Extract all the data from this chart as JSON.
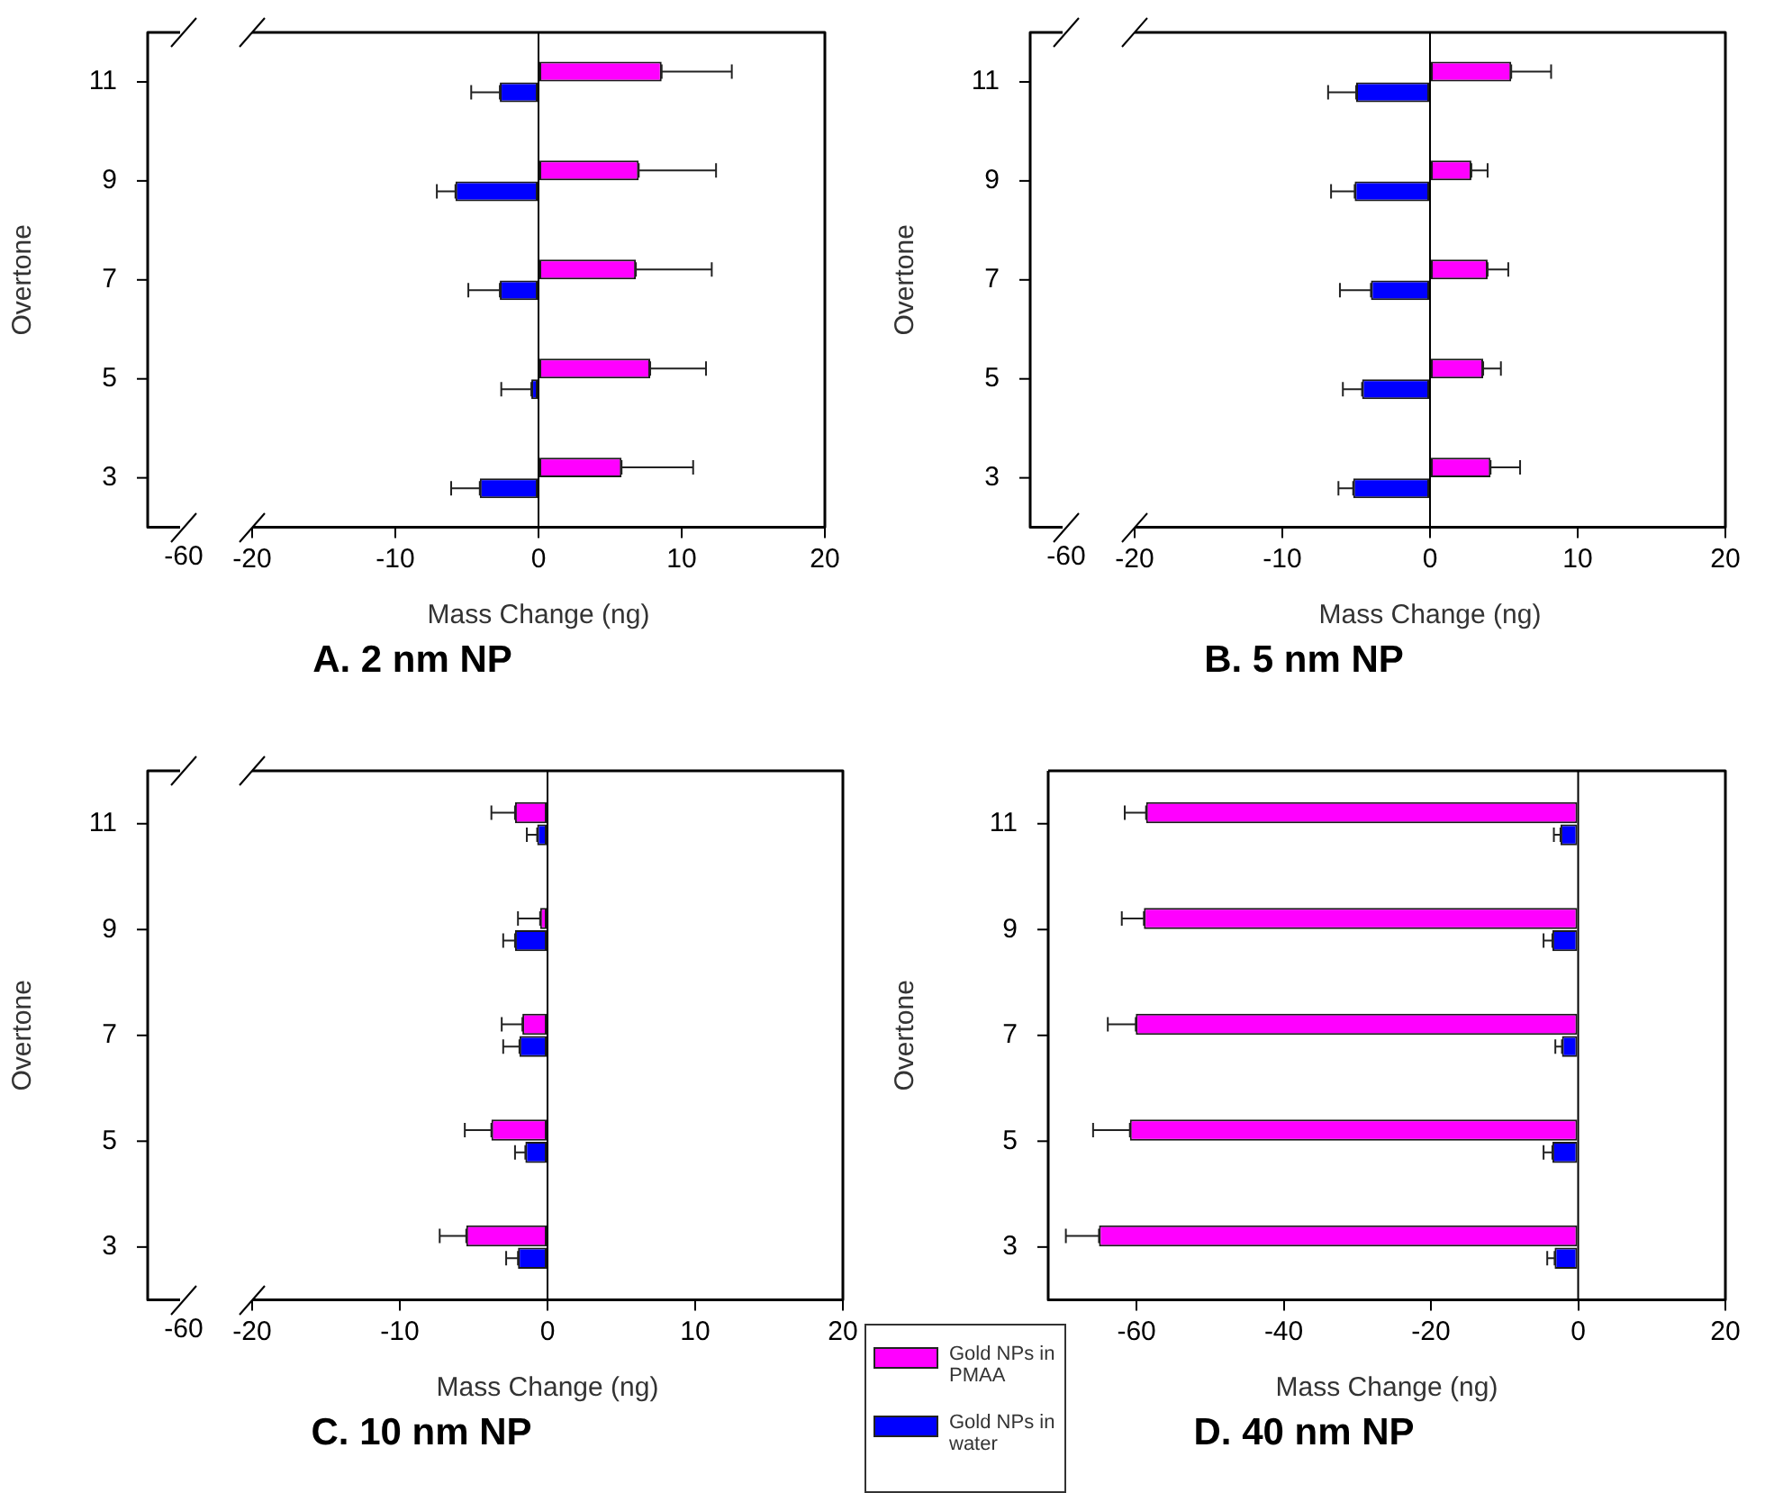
{
  "chart_data": [
    {
      "type": "bar",
      "orientation": "horizontal",
      "title": "A. 2 nm NP",
      "xlabel": "Mass Change (ng)",
      "ylabel": "Overtone",
      "categories": [
        "11",
        "9",
        "7",
        "5",
        "3"
      ],
      "series": [
        {
          "color": "#ff00ff",
          "values": [
            8.6,
            7.0,
            6.8,
            7.8,
            5.8
          ],
          "errors": [
            [
              8.6,
              13.5
            ],
            [
              7.0,
              12.4
            ],
            [
              6.8,
              12.1
            ],
            [
              7.8,
              11.7
            ],
            [
              5.8,
              10.8
            ]
          ]
        },
        {
          "color": "#0000ff",
          "values": [
            -2.7,
            -5.8,
            -2.7,
            -0.5,
            -4.1
          ],
          "errors": [
            [
              -4.7,
              -2.7
            ],
            [
              -7.1,
              -5.8
            ],
            [
              -4.9,
              -2.7
            ],
            [
              -2.6,
              -0.5
            ],
            [
              -6.1,
              -4.1
            ]
          ]
        }
      ],
      "xlim": [
        -20,
        20
      ],
      "xticks": [
        -20,
        -10,
        0,
        10,
        20
      ],
      "annotations": [
        "-60"
      ]
    },
    {
      "type": "bar",
      "orientation": "horizontal",
      "title": "B. 5 nm NP",
      "xlabel": "Mass Change (ng)",
      "ylabel": "Overtone",
      "categories": [
        "11",
        "9",
        "7",
        "5",
        "3"
      ],
      "series": [
        {
          "color": "#ff00ff",
          "values": [
            5.5,
            2.8,
            3.9,
            3.6,
            4.1
          ],
          "errors": [
            [
              5.5,
              8.2
            ],
            [
              2.8,
              3.9
            ],
            [
              3.9,
              5.3
            ],
            [
              3.6,
              4.8
            ],
            [
              4.1,
              6.1
            ]
          ]
        },
        {
          "color": "#0000ff",
          "values": [
            -5.0,
            -5.1,
            -4.0,
            -4.6,
            -5.2
          ],
          "errors": [
            [
              -6.9,
              -5.0
            ],
            [
              -6.7,
              -5.1
            ],
            [
              -6.1,
              -4.0
            ],
            [
              -5.9,
              -4.6
            ],
            [
              -6.2,
              -5.2
            ]
          ]
        }
      ],
      "xlim": [
        -20,
        20
      ],
      "xticks": [
        -20,
        -10,
        0,
        10,
        20
      ],
      "annotations": [
        "-60"
      ]
    },
    {
      "type": "bar",
      "orientation": "horizontal",
      "title": "C. 10 nm NP",
      "xlabel": "Mass Change (ng)",
      "ylabel": "Overtone",
      "categories": [
        "11",
        "9",
        "7",
        "5",
        "3"
      ],
      "series": [
        {
          "name": "Gold NPs in PMAA",
          "color": "#ff00ff",
          "values": [
            -2.2,
            -0.5,
            -1.7,
            -3.8,
            -5.5
          ],
          "errors": [
            [
              -3.8,
              -2.2
            ],
            [
              -2.0,
              -0.5
            ],
            [
              -3.1,
              -1.7
            ],
            [
              -5.6,
              -3.8
            ],
            [
              -7.3,
              -5.5
            ]
          ]
        },
        {
          "name": "Gold NPs in water",
          "color": "#0000ff",
          "values": [
            -0.7,
            -2.2,
            -1.9,
            -1.5,
            -2.0
          ],
          "errors": [
            [
              -1.4,
              -0.7
            ],
            [
              -3.0,
              -2.2
            ],
            [
              -3.0,
              -1.9
            ],
            [
              -2.2,
              -1.5
            ],
            [
              -2.8,
              -2.0
            ]
          ]
        }
      ],
      "xlim": [
        -20,
        20
      ],
      "xticks": [
        -20,
        -10,
        0,
        10,
        20
      ],
      "annotations": [
        "-60"
      ],
      "legend": "bottom right"
    },
    {
      "type": "bar",
      "orientation": "horizontal",
      "title": "D. 40 nm NP",
      "xlabel": "Mass Change (ng)",
      "ylabel": "Overtone",
      "categories": [
        "11",
        "9",
        "7",
        "5",
        "3"
      ],
      "series": [
        {
          "color": "#ff00ff",
          "values": [
            -58.7,
            -59.0,
            -60.1,
            -60.9,
            -65.1
          ],
          "errors": [
            [
              -61.6,
              -58.7
            ],
            [
              -62.0,
              -59.0
            ],
            [
              -63.9,
              -60.1
            ],
            [
              -65.9,
              -60.9
            ],
            [
              -69.6,
              -65.1
            ]
          ]
        },
        {
          "color": "#0000ff",
          "values": [
            -2.4,
            -3.5,
            -2.2,
            -3.5,
            -3.2
          ],
          "errors": [
            [
              -3.3,
              -2.4
            ],
            [
              -4.7,
              -3.5
            ],
            [
              -3.1,
              -2.2
            ],
            [
              -4.7,
              -3.5
            ],
            [
              -4.2,
              -3.2
            ]
          ]
        }
      ],
      "xlim": [
        -72,
        20
      ],
      "xticks": [
        -60,
        -40,
        -20,
        0,
        20
      ]
    }
  ]
}
